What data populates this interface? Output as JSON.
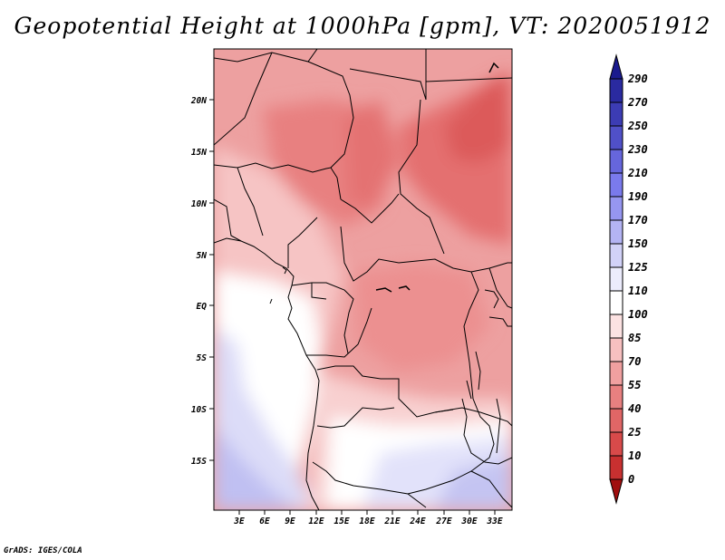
{
  "title": "Geopotential Height at 1000hPa [gpm], VT: 2020051912",
  "credit": "GrADS: IGES/COLA",
  "map": {
    "lon_range": [
      0,
      35
    ],
    "lat_range": [
      -20,
      25
    ],
    "x_ticks": [
      "3E",
      "6E",
      "9E",
      "12E",
      "15E",
      "18E",
      "21E",
      "24E",
      "27E",
      "30E",
      "33E"
    ],
    "y_ticks": [
      "20N",
      "15N",
      "10N",
      "5N",
      "EQ",
      "5S",
      "10S",
      "15S"
    ]
  },
  "colorbar": {
    "labels": [
      "290",
      "270",
      "250",
      "230",
      "210",
      "190",
      "170",
      "150",
      "125",
      "110",
      "100",
      "85",
      "70",
      "55",
      "40",
      "25",
      "10",
      "0"
    ],
    "colors": {
      "c1": "#1a1a8e",
      "c2": "#2a2aa0",
      "c3": "#3c3cb4",
      "c4": "#5050c8",
      "c5": "#6666dc",
      "c6": "#7a7aec",
      "c7": "#9696f0",
      "c8": "#b4b4f4",
      "c9": "#d2d2f8",
      "c10": "#ececfc",
      "c11": "#ffffff",
      "c12": "#fce2e2",
      "c13": "#f7c0c0",
      "c14": "#f0a0a0",
      "c15": "#e88080",
      "c16": "#e06666",
      "c17": "#d84a4a",
      "c18": "#c83030",
      "c19": "#b81c1c",
      "c20": "#a00e0e"
    }
  }
}
